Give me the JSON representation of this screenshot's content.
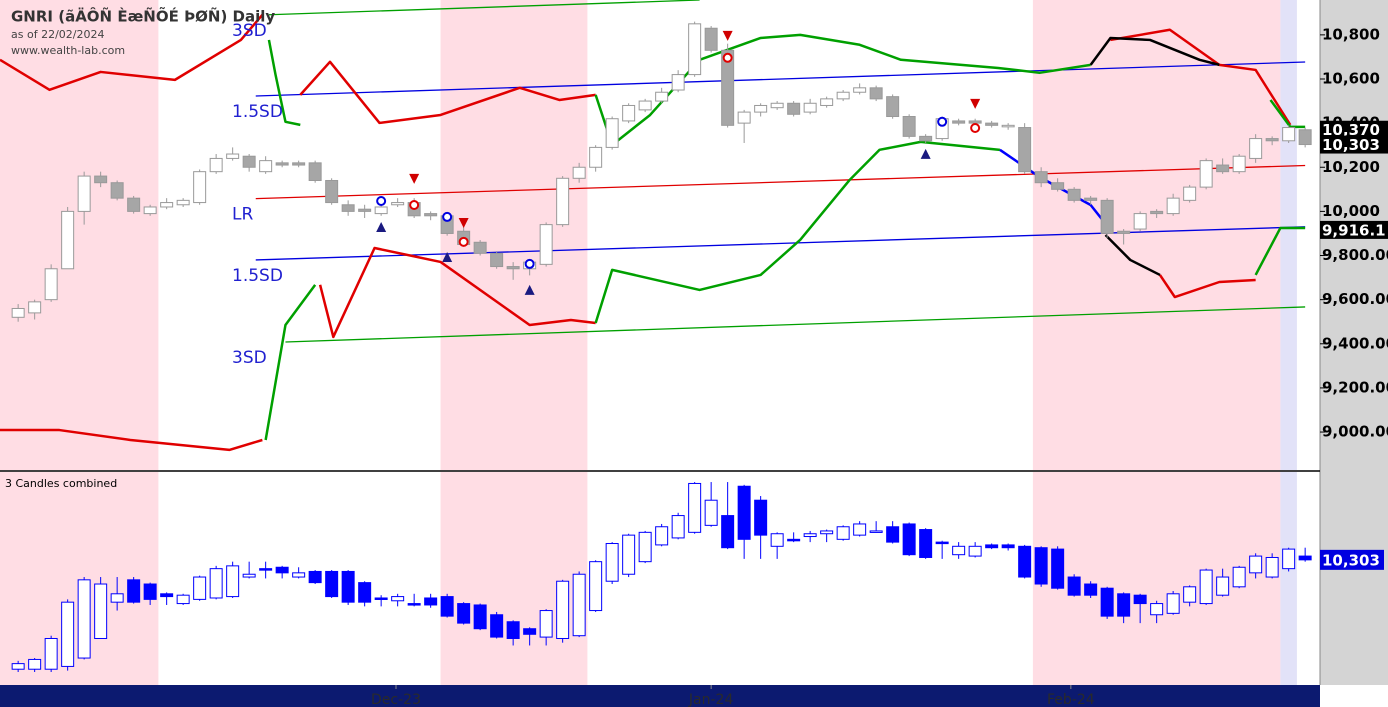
{
  "chart_data": [
    {
      "type": "candlestick",
      "title": "GNRI (ãÄÔÑ ÈæÑÕÉ ÞØÑ) Daily",
      "subtitle": "as of 22/02/2024",
      "source": "www.wealth-lab.com",
      "xlim": [
        -1.1,
        78.9
      ],
      "ylim": [
        8828,
        10958
      ],
      "yticks": [
        {
          "value": 10800,
          "label": "10,800"
        },
        {
          "value": 10600,
          "label": "10,600"
        },
        {
          "value": 10400,
          "label": "10,400"
        },
        {
          "value": 10200,
          "label": "10,200"
        },
        {
          "value": 10000,
          "label": "10,000"
        },
        {
          "value": 9800,
          "label": "9,800.00"
        },
        {
          "value": 9600,
          "label": "9,600.00"
        },
        {
          "value": 9400,
          "label": "9,400.00"
        },
        {
          "value": 9200,
          "label": "9,200.00"
        },
        {
          "value": 9000,
          "label": "9,000.00"
        }
      ],
      "xticks": [
        {
          "value": 22.9,
          "label": "Dec-23"
        },
        {
          "value": 42,
          "label": "Jan-24"
        },
        {
          "value": 63.8,
          "label": "Feb-24"
        }
      ],
      "shaded": [
        {
          "from": -1.1,
          "to": 8.5,
          "color": "#ffdde4"
        },
        {
          "from": 25.6,
          "to": 34.5,
          "color": "#ffdde4"
        },
        {
          "from": 61.5,
          "to": 76.5,
          "color": "#ffdde4"
        },
        {
          "from": 76.5,
          "to": 77.5,
          "color": "#e2e2f8"
        }
      ],
      "x": [
        0,
        1,
        2,
        3,
        4,
        5,
        6,
        7,
        8,
        9,
        10,
        11,
        12,
        13,
        14,
        15,
        16,
        17,
        18,
        19,
        20,
        21,
        22,
        23,
        24,
        25,
        26,
        27,
        28,
        29,
        30,
        31,
        32,
        33,
        34,
        35,
        36,
        37,
        38,
        39,
        40,
        41,
        42,
        43,
        44,
        45,
        46,
        47,
        48,
        49,
        50,
        51,
        52,
        53,
        54,
        55,
        56,
        57,
        58,
        59,
        60,
        61,
        62,
        63,
        64,
        65,
        66,
        67,
        68,
        69,
        70,
        71,
        72,
        73,
        74,
        75,
        76,
        77,
        78
      ],
      "open": [
        9520,
        9540,
        9600,
        9740,
        10000,
        10160,
        10130,
        10060,
        9990,
        10020,
        10030,
        10040,
        10180,
        10240,
        10250,
        10180,
        10220,
        10220,
        10220,
        10140,
        10030,
        10010,
        9990,
        10030,
        10040,
        9990,
        9980,
        9910,
        9860,
        9810,
        9750,
        9740,
        9760,
        9940,
        10150,
        10200,
        10290,
        10410,
        10460,
        10500,
        10550,
        10620,
        10830,
        10730,
        10400,
        10450,
        10470,
        10490,
        10450,
        10480,
        10510,
        10540,
        10560,
        10520,
        10430,
        10340,
        10330,
        10410,
        10410,
        10400,
        10390,
        10380,
        10180,
        10130,
        10100,
        10060,
        10050,
        9910,
        9920,
        10000,
        9990,
        10050,
        10110,
        10210,
        10180,
        10240,
        10330,
        10320,
        10370
      ],
      "high": [
        9580,
        9600,
        9760,
        10020,
        10180,
        10180,
        10140,
        10070,
        10030,
        10060,
        10060,
        10190,
        10260,
        10290,
        10260,
        10250,
        10230,
        10230,
        10230,
        10150,
        10050,
        10030,
        10040,
        10060,
        10060,
        10000,
        9990,
        9930,
        9870,
        9820,
        9770,
        9780,
        9950,
        10160,
        10220,
        10300,
        10430,
        10490,
        10510,
        10560,
        10640,
        10860,
        10840,
        10760,
        10460,
        10490,
        10500,
        10500,
        10510,
        10520,
        10550,
        10580,
        10570,
        10530,
        10440,
        10350,
        10430,
        10420,
        10420,
        10410,
        10400,
        10400,
        10200,
        10150,
        10110,
        10070,
        10060,
        9920,
        10000,
        10010,
        10080,
        10120,
        10240,
        10240,
        10260,
        10350,
        10340,
        10390,
        10380
      ],
      "low": [
        9500,
        9510,
        9590,
        9740,
        9940,
        10110,
        10050,
        9990,
        9980,
        10010,
        10020,
        10030,
        10170,
        10230,
        10180,
        10170,
        10200,
        10200,
        10130,
        10030,
        9980,
        9970,
        9980,
        10020,
        9970,
        9960,
        9890,
        9840,
        9800,
        9740,
        9690,
        9710,
        9750,
        9930,
        10130,
        10180,
        10280,
        10400,
        10450,
        10490,
        10540,
        10610,
        10720,
        10380,
        10310,
        10430,
        10460,
        10430,
        10440,
        10470,
        10500,
        10530,
        10500,
        10420,
        10330,
        10310,
        10320,
        10390,
        10390,
        10380,
        10370,
        10170,
        10110,
        10090,
        10040,
        10030,
        9880,
        9850,
        9910,
        9970,
        9980,
        10040,
        10100,
        10170,
        10170,
        10220,
        10300,
        10310,
        10290
      ],
      "close": [
        9560,
        9590,
        9740,
        10000,
        10160,
        10130,
        10060,
        10000,
        10020,
        10040,
        10050,
        10180,
        10240,
        10260,
        10200,
        10230,
        10210,
        10210,
        10140,
        10040,
        10000,
        10000,
        10020,
        10040,
        9980,
        9980,
        9900,
        9850,
        9810,
        9750,
        9740,
        9770,
        9940,
        10150,
        10200,
        10290,
        10420,
        10480,
        10500,
        10540,
        10620,
        10850,
        10730,
        10390,
        10450,
        10480,
        10490,
        10440,
        10490,
        10510,
        10540,
        10560,
        10510,
        10430,
        10340,
        10320,
        10420,
        10400,
        10400,
        10390,
        10390,
        10180,
        10130,
        10100,
        10050,
        10050,
        9900,
        9900,
        9990,
        9990,
        10060,
        10110,
        10230,
        10180,
        10250,
        10330,
        10320,
        10380,
        10303
      ],
      "series": [
        {
          "name": "3SD",
          "color": "#00a000",
          "x": [
            15.2,
            41.3
          ],
          "values": [
            10891,
            10958
          ]
        },
        {
          "name": "1.5SD",
          "color": "#0000e0",
          "x": [
            14.4,
            78
          ],
          "values": [
            10523,
            10677
          ]
        },
        {
          "name": "LR",
          "color": "#e00000",
          "x": [
            14.4,
            78
          ],
          "values": [
            10058,
            10208
          ]
        },
        {
          "name": "1.5SD",
          "color": "#0000e0",
          "x": [
            14.4,
            78
          ],
          "values": [
            9780,
            9930
          ]
        },
        {
          "name": "3SD",
          "color": "#00a000",
          "x": [
            16.2,
            78
          ],
          "values": [
            9408,
            9567
          ]
        }
      ],
      "curves": [
        {
          "color": "#e00000",
          "x": [
            -1.1,
            1.9,
            5.0,
            9.5,
            13.5,
            14.8
          ],
          "values": [
            10687,
            10551,
            10632,
            10596,
            10777,
            10891
          ]
        },
        {
          "color": "#e00000",
          "x": [
            17.1,
            18.9,
            21.9,
            25.6,
            30.4,
            32.8,
            35.0
          ],
          "values": [
            10528,
            10678,
            10401,
            10437,
            10560,
            10505,
            10528
          ]
        },
        {
          "color": "#e00000",
          "x": [
            -1.1,
            2.5,
            6.8,
            12.8,
            14.8
          ],
          "values": [
            9009,
            9009,
            8964,
            8919,
            8964
          ]
        },
        {
          "color": "#e00000",
          "x": [
            18.3,
            19.1,
            21.6,
            25.6,
            31.0,
            33.5,
            35.0
          ],
          "values": [
            9667,
            9431,
            9834,
            9771,
            9485,
            9508,
            9494
          ]
        },
        {
          "color": "#e00000",
          "x": [
            66.2,
            69.8,
            72.8,
            75.0,
            77.1
          ],
          "values": [
            10777,
            10823,
            10664,
            10641,
            10392
          ]
        },
        {
          "color": "#e00000",
          "x": [
            69.2,
            70.1,
            72.8,
            75.0
          ],
          "values": [
            9712,
            9612,
            9680,
            9689
          ]
        },
        {
          "color": "#00a000",
          "x": [
            15.2,
            15.6,
            16.2,
            17.1
          ],
          "values": [
            10777,
            10619,
            10406,
            10392
          ]
        },
        {
          "color": "#00a000",
          "x": [
            15.0,
            16.2,
            18.0
          ],
          "values": [
            8964,
            9485,
            9667
          ]
        },
        {
          "color": "#00a000",
          "x": [
            35.0,
            36.0,
            38.3,
            41.3,
            45.0,
            47.4,
            51.0,
            53.5,
            59.4,
            61.9,
            65.0
          ],
          "values": [
            10528,
            10301,
            10437,
            10687,
            10786,
            10800,
            10755,
            10687,
            10650,
            10628,
            10664
          ]
        },
        {
          "color": "#00a000",
          "x": [
            35.0,
            36.0,
            41.3,
            45.0,
            47.4,
            50.4,
            52.2,
            54.7,
            57.1,
            59.5
          ],
          "values": [
            9494,
            9735,
            9644,
            9712,
            9871,
            10143,
            10279,
            10315,
            10297,
            10279
          ]
        },
        {
          "color": "#00a000",
          "x": [
            75.9,
            77.1,
            78.0
          ],
          "values": [
            10505,
            10383,
            10383
          ]
        },
        {
          "color": "#00a000",
          "x": [
            75.0,
            76.5,
            78.0
          ],
          "values": [
            9712,
            9925,
            9925
          ]
        },
        {
          "color": "#000000",
          "x": [
            65.0,
            66.2,
            68.6,
            71.6,
            72.8
          ],
          "values": [
            10664,
            10786,
            10777,
            10687,
            10664
          ]
        },
        {
          "color": "#000000",
          "x": [
            65.9,
            67.4,
            69.2
          ],
          "values": [
            9893,
            9780,
            9712
          ]
        },
        {
          "color": "#0000ff",
          "x": [
            59.5,
            61.9,
            65.0,
            66.2
          ],
          "values": [
            10279,
            10156,
            10029,
            9916
          ]
        }
      ],
      "markers": [
        {
          "shape": "triangle-up",
          "color": "#1a1a80",
          "x": [
            22,
            26,
            31,
            55
          ],
          "values": [
            9925,
            9789,
            9640,
            10256
          ]
        },
        {
          "shape": "triangle-down",
          "color": "#d00000",
          "x": [
            24,
            27,
            43,
            58
          ],
          "values": [
            10152,
            9952,
            10800,
            10492
          ]
        },
        {
          "shape": "circle",
          "color": "#e00000",
          "x": [
            24,
            27,
            43,
            58
          ],
          "values": [
            10029,
            9862,
            10696,
            10378
          ]
        },
        {
          "shape": "circle",
          "color": "#0000e0",
          "x": [
            22,
            26,
            31,
            56
          ],
          "values": [
            10047,
            9975,
            9762,
            10406
          ]
        }
      ],
      "price_labels": [
        {
          "value": 10370,
          "label": "10,370"
        },
        {
          "value": 10303,
          "label": "10,303"
        },
        {
          "value": 9916.1,
          "label": "9,916.1"
        }
      ]
    },
    {
      "type": "combined",
      "title": "3 Candles combined",
      "combine": 3,
      "color": "#0000ff",
      "ylim": [
        9407,
        10932
      ],
      "price_labels": [
        {
          "value": 10303,
          "label": "10,303"
        }
      ]
    }
  ]
}
